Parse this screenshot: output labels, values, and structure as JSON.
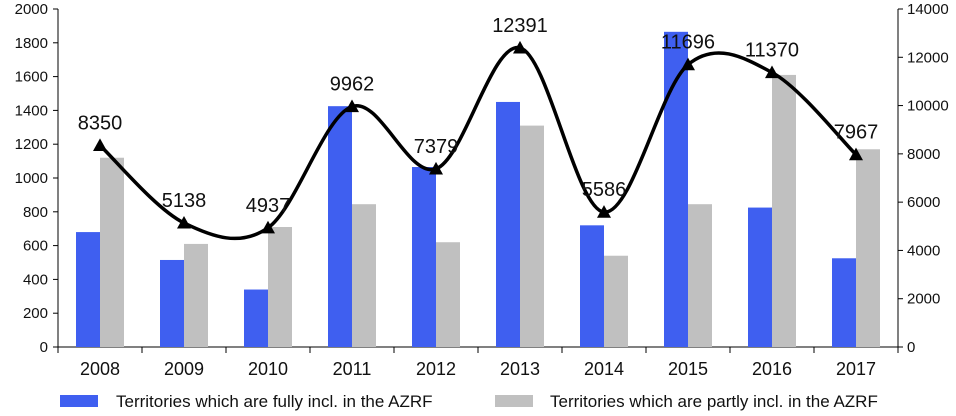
{
  "chart_data": {
    "type": "bar",
    "categories": [
      "2008",
      "2009",
      "2010",
      "2011",
      "2012",
      "2013",
      "2014",
      "2015",
      "2016",
      "2017"
    ],
    "series": [
      {
        "name": "Territories which are fully incl. in the AZRF",
        "type": "bar",
        "axis": "left",
        "color": "#3f5ff0",
        "values": [
          680,
          515,
          340,
          1425,
          1065,
          1450,
          720,
          1865,
          825,
          525
        ]
      },
      {
        "name": "Territories which are partly incl. in the AZRF",
        "type": "bar",
        "axis": "left",
        "color": "#c0c0c0",
        "values": [
          1120,
          610,
          710,
          845,
          620,
          1310,
          540,
          845,
          1610,
          1170
        ]
      },
      {
        "name": "",
        "type": "line",
        "axis": "right",
        "smooth": true,
        "color": "#000000",
        "values": [
          8350,
          5138,
          4937,
          9962,
          7379,
          12391,
          5586,
          11696,
          11370,
          7967
        ],
        "labels": [
          "8350",
          "5138",
          "4937",
          "9962",
          "7379",
          "12391",
          "5586",
          "11696",
          "11370",
          "7967"
        ]
      }
    ],
    "y_left": {
      "min": 0,
      "max": 2000,
      "step": 200,
      "ticks": [
        "0",
        "200",
        "400",
        "600",
        "800",
        "1000",
        "1200",
        "1400",
        "1600",
        "1800",
        "2000"
      ]
    },
    "y_right": {
      "min": 0,
      "max": 14000,
      "step": 2000,
      "ticks": [
        "0",
        "2000",
        "4000",
        "6000",
        "8000",
        "10000",
        "12000",
        "14000"
      ]
    },
    "title": "",
    "xlabel": "",
    "ylabel": "",
    "grid": false,
    "legend": "bottom"
  }
}
